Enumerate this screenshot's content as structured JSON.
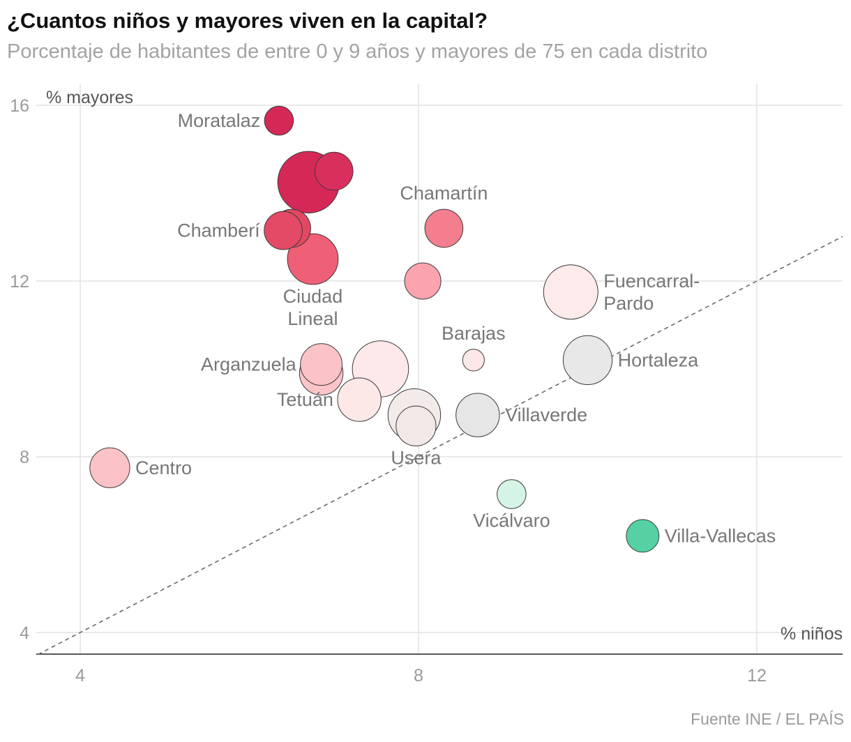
{
  "chart_data": {
    "type": "scatter",
    "title": "¿Cuantos niños y mayores viven en la capital?",
    "subtitle": "Porcentaje de habitantes de entre 0 y 9 años y mayores de 75 en cada distrito",
    "xlabel": "% niños",
    "ylabel": "% mayores",
    "xlim": [
      3.5,
      13
    ],
    "ylim": [
      3.5,
      16.5
    ],
    "xticks": [
      "4",
      "8",
      "12"
    ],
    "yticks": [
      "4",
      "8",
      "12",
      "16"
    ],
    "grid": true,
    "reference_line": "y = x (dashed)",
    "source": "Fuente INE / EL PAÍS",
    "points": [
      {
        "label": "Moratalaz",
        "x": 6.35,
        "y": 15.65,
        "size": 0.8,
        "color": "#d62857",
        "label_pos": "left"
      },
      {
        "label": "",
        "x": 6.7,
        "y": 14.25,
        "size": 1.7,
        "color": "#d62857",
        "label_pos": "none"
      },
      {
        "label": "",
        "x": 7.0,
        "y": 14.5,
        "size": 1.05,
        "color": "#d82f5c",
        "label_pos": "none"
      },
      {
        "label": "Chamartín",
        "x": 8.3,
        "y": 13.2,
        "size": 1.05,
        "color": "#f37f8e",
        "label_pos": "above"
      },
      {
        "label": "",
        "x": 6.5,
        "y": 13.2,
        "size": 1.05,
        "color": "#e24863",
        "label_pos": "none"
      },
      {
        "label": "Chamberí",
        "x": 6.4,
        "y": 13.15,
        "size": 1.05,
        "color": "#e44a66",
        "label_pos": "left"
      },
      {
        "label": "Ciudad Lineal",
        "x": 6.75,
        "y": 12.5,
        "size": 1.4,
        "color": "#ef5f76",
        "label_pos": "below"
      },
      {
        "label": "",
        "x": 8.05,
        "y": 12.0,
        "size": 1.0,
        "color": "#fba3ae",
        "label_pos": "none"
      },
      {
        "label": "Fuencarral-Pardo",
        "x": 9.8,
        "y": 11.75,
        "size": 1.5,
        "color": "#fdeaea",
        "label_pos": "right"
      },
      {
        "label": "Barajas",
        "x": 8.65,
        "y": 10.2,
        "size": 0.6,
        "color": "#fde7e7",
        "label_pos": "above"
      },
      {
        "label": "Hortaleza",
        "x": 10.0,
        "y": 10.2,
        "size": 1.35,
        "color": "#e8e8e8",
        "label_pos": "right"
      },
      {
        "label": "",
        "x": 7.55,
        "y": 10.0,
        "size": 1.55,
        "color": "#fde9ea",
        "label_pos": "none"
      },
      {
        "label": "",
        "x": 6.85,
        "y": 9.9,
        "size": 1.2,
        "color": "#fbc4c8",
        "label_pos": "none"
      },
      {
        "label": "Arganzuela",
        "x": 6.85,
        "y": 10.1,
        "size": 1.15,
        "color": "#fcc3c7",
        "label_pos": "left"
      },
      {
        "label": "Tetuán",
        "x": 7.3,
        "y": 9.3,
        "size": 1.2,
        "color": "#fde8e8",
        "label_pos": "left"
      },
      {
        "label": "",
        "x": 7.95,
        "y": 8.95,
        "size": 1.45,
        "color": "#f3eaea",
        "label_pos": "none"
      },
      {
        "label": "Usera",
        "x": 7.97,
        "y": 8.7,
        "size": 1.1,
        "color": "#f2e8e8",
        "label_pos": "below"
      },
      {
        "label": "Villaverde",
        "x": 8.7,
        "y": 8.95,
        "size": 1.2,
        "color": "#e6e6e6",
        "label_pos": "right"
      },
      {
        "label": "Centro",
        "x": 4.35,
        "y": 7.75,
        "size": 1.1,
        "color": "#fcc3c7",
        "label_pos": "right"
      },
      {
        "label": "Vicálvaro",
        "x": 9.1,
        "y": 7.15,
        "size": 0.8,
        "color": "#d5f4e5",
        "label_pos": "below"
      },
      {
        "label": "Villa-Vallecas",
        "x": 10.65,
        "y": 6.2,
        "size": 0.9,
        "color": "#55d1a3",
        "label_pos": "right"
      }
    ]
  }
}
